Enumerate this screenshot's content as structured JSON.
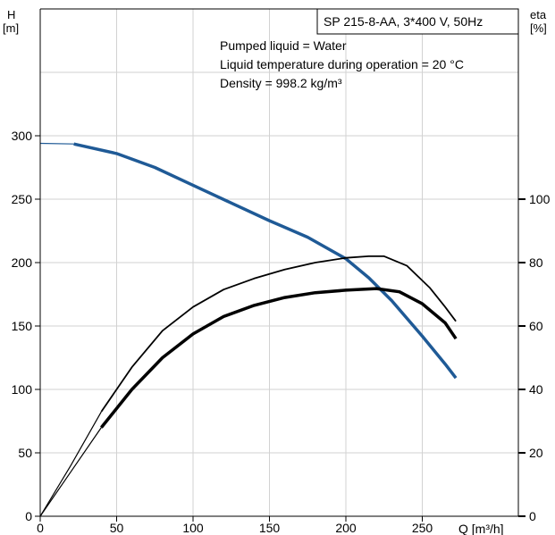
{
  "chart_data": {
    "type": "line",
    "title": "SP 215-8-AA, 3*400 V, 50Hz",
    "info_lines": [
      "Pumped liquid = Water",
      "Liquid temperature during operation = 20 °C",
      "Density = 998.2 kg/m³"
    ],
    "left_axis": {
      "label_top": "H",
      "label_unit": "[m]",
      "ticks": [
        "0",
        "50",
        "100",
        "150",
        "200",
        "250",
        "300"
      ],
      "range": [
        0,
        300
      ]
    },
    "right_axis": {
      "label_top": "eta",
      "label_unit": "[%]",
      "ticks": [
        "0",
        "20",
        "40",
        "60",
        "80",
        "100"
      ],
      "range": [
        0,
        100
      ]
    },
    "x_axis": {
      "label": "Q [m³/h]",
      "ticks": [
        "0",
        "50",
        "100",
        "150",
        "200",
        "250"
      ],
      "range": [
        0,
        300
      ]
    },
    "series": [
      {
        "axis": "left",
        "color": "#1f5a96",
        "points": [
          [
            0,
            294
          ],
          [
            22,
            293.5
          ],
          [
            50,
            286
          ],
          [
            75,
            275
          ],
          [
            100,
            261
          ],
          [
            125,
            247
          ],
          [
            150,
            233
          ],
          [
            175,
            220
          ],
          [
            200,
            203
          ],
          [
            215,
            188
          ],
          [
            230,
            170
          ],
          [
            250,
            142
          ],
          [
            265,
            120
          ],
          [
            272,
            109
          ]
        ]
      },
      {
        "axis": "right",
        "color": "#000000",
        "points": [
          [
            0,
            0
          ],
          [
            20,
            14
          ],
          [
            40,
            28
          ],
          [
            60,
            40
          ],
          [
            80,
            50
          ],
          [
            100,
            57.5
          ],
          [
            120,
            63
          ],
          [
            140,
            66.5
          ],
          [
            160,
            69
          ],
          [
            180,
            70.5
          ],
          [
            200,
            71.3
          ],
          [
            220,
            71.8
          ],
          [
            235,
            70.8
          ],
          [
            250,
            67
          ],
          [
            265,
            61
          ],
          [
            272,
            56
          ]
        ]
      },
      {
        "axis": "right",
        "color": "#000000",
        "points": [
          [
            0,
            0
          ],
          [
            20,
            16
          ],
          [
            40,
            33
          ],
          [
            60,
            47
          ],
          [
            80,
            58.5
          ],
          [
            100,
            66
          ],
          [
            120,
            71.5
          ],
          [
            140,
            75
          ],
          [
            160,
            77.8
          ],
          [
            180,
            80
          ],
          [
            200,
            81.5
          ],
          [
            215,
            82
          ],
          [
            225,
            82
          ],
          [
            240,
            79
          ],
          [
            255,
            72
          ],
          [
            265,
            66
          ],
          [
            272,
            61.5
          ]
        ]
      }
    ]
  }
}
